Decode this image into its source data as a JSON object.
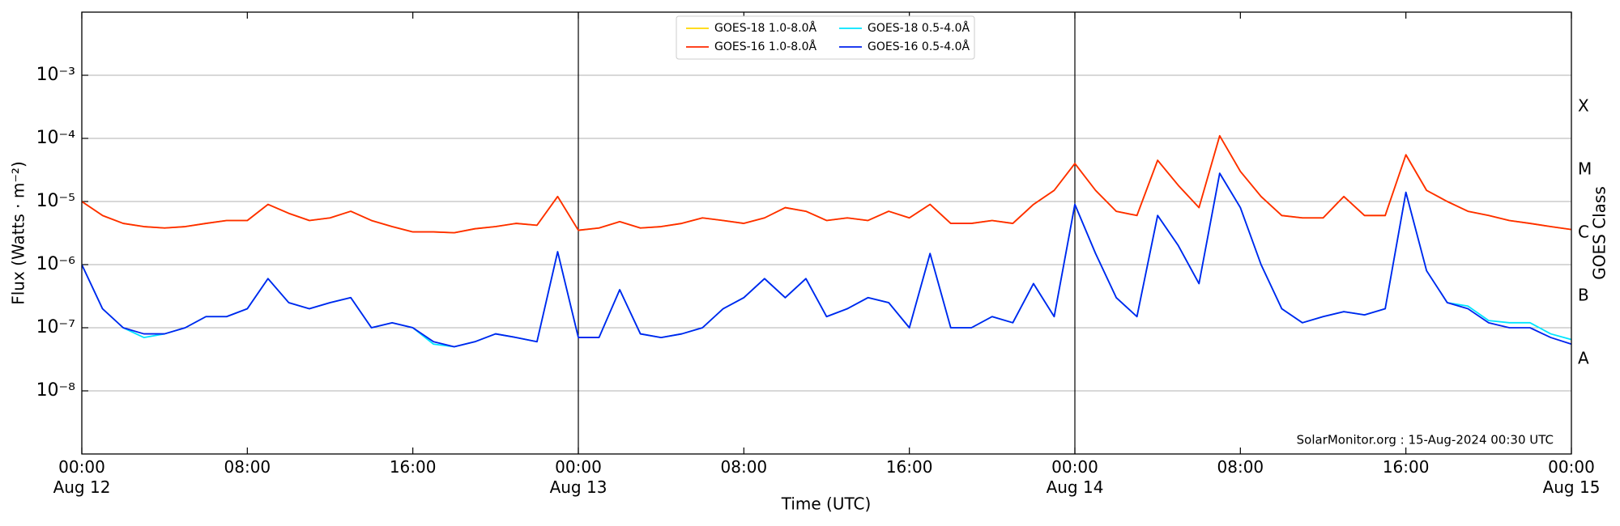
{
  "chart_data": {
    "type": "line",
    "ylabel": "Flux (Watts · m⁻²)",
    "xlabel": "Time (UTC)",
    "y2label": "GOES Class",
    "annotation": "SolarMonitor.org : 15-Aug-2024 00:30 UTC",
    "log_y": true,
    "grid": "y",
    "legend": "upper center",
    "ylim": [
      1e-09,
      0.01
    ],
    "yticks": [
      {
        "value": 1e-08,
        "label": "10⁻⁸"
      },
      {
        "value": 1e-07,
        "label": "10⁻⁷"
      },
      {
        "value": 1e-06,
        "label": "10⁻⁶"
      },
      {
        "value": 1e-05,
        "label": "10⁻⁵"
      },
      {
        "value": 0.0001,
        "label": "10⁻⁴"
      },
      {
        "value": 0.001,
        "label": "10⁻³"
      }
    ],
    "y2lim": [
      1e-09,
      0.01
    ],
    "y2ticks": [
      {
        "value": 3.16e-08,
        "label": "A"
      },
      {
        "value": 3.16e-07,
        "label": "B"
      },
      {
        "value": 3.16e-06,
        "label": "C"
      },
      {
        "value": 3.16e-05,
        "label": "M"
      },
      {
        "value": 0.000316,
        "label": "X"
      }
    ],
    "xlim": [
      "Aug 12 00:00",
      "Aug 15 00:00"
    ],
    "xticks": [
      {
        "value": "Aug 12 00:00",
        "label": "00:00\nAug 12"
      },
      {
        "value": "Aug 12 08:00",
        "label": "08:00"
      },
      {
        "value": "Aug 12 16:00",
        "label": "16:00"
      },
      {
        "value": "Aug 13 00:00",
        "label": "00:00\nAug 13"
      },
      {
        "value": "Aug 13 08:00",
        "label": "08:00"
      },
      {
        "value": "Aug 13 16:00",
        "label": "16:00"
      },
      {
        "value": "Aug 14 00:00",
        "label": "00:00\nAug 14"
      },
      {
        "value": "Aug 14 08:00",
        "label": "08:00"
      },
      {
        "value": "Aug 14 16:00",
        "label": "16:00"
      },
      {
        "value": "Aug 15 00:00",
        "label": "00:00\nAug 15"
      }
    ],
    "vlines": [
      "Aug 13 00:00",
      "Aug 14 00:00"
    ],
    "x": [
      "Aug 12 00:00",
      "Aug 12 01:00",
      "Aug 12 02:00",
      "Aug 12 03:00",
      "Aug 12 04:00",
      "Aug 12 05:00",
      "Aug 12 06:00",
      "Aug 12 07:00",
      "Aug 12 08:00",
      "Aug 12 09:00",
      "Aug 12 10:00",
      "Aug 12 11:00",
      "Aug 12 12:00",
      "Aug 12 13:00",
      "Aug 12 14:00",
      "Aug 12 15:00",
      "Aug 12 16:00",
      "Aug 12 17:00",
      "Aug 12 18:00",
      "Aug 12 19:00",
      "Aug 12 20:00",
      "Aug 12 21:00",
      "Aug 12 22:00",
      "Aug 12 23:00",
      "Aug 13 00:00",
      "Aug 13 01:00",
      "Aug 13 02:00",
      "Aug 13 03:00",
      "Aug 13 04:00",
      "Aug 13 05:00",
      "Aug 13 06:00",
      "Aug 13 07:00",
      "Aug 13 08:00",
      "Aug 13 09:00",
      "Aug 13 10:00",
      "Aug 13 11:00",
      "Aug 13 12:00",
      "Aug 13 13:00",
      "Aug 13 14:00",
      "Aug 13 15:00",
      "Aug 13 16:00",
      "Aug 13 17:00",
      "Aug 13 18:00",
      "Aug 13 19:00",
      "Aug 13 20:00",
      "Aug 13 21:00",
      "Aug 13 22:00",
      "Aug 13 23:00",
      "Aug 14 00:00",
      "Aug 14 01:00",
      "Aug 14 02:00",
      "Aug 14 03:00",
      "Aug 14 04:00",
      "Aug 14 05:00",
      "Aug 14 06:00",
      "Aug 14 07:00",
      "Aug 14 08:00",
      "Aug 14 09:00",
      "Aug 14 10:00",
      "Aug 14 11:00",
      "Aug 14 12:00",
      "Aug 14 13:00",
      "Aug 14 14:00",
      "Aug 14 15:00",
      "Aug 14 16:00",
      "Aug 14 17:00",
      "Aug 14 18:00",
      "Aug 14 19:00",
      "Aug 14 20:00",
      "Aug 14 21:00",
      "Aug 14 22:00",
      "Aug 14 23:00",
      "Aug 15 00:00"
    ],
    "series": [
      {
        "name": "GOES-18 1.0-8.0Å",
        "color": "#ffd700",
        "values": [
          1e-05,
          6e-06,
          4.5e-06,
          4e-06,
          3.8e-06,
          4e-06,
          4.5e-06,
          5e-06,
          5e-06,
          9e-06,
          6.5e-06,
          5e-06,
          5.5e-06,
          7e-06,
          5e-06,
          4e-06,
          3.3e-06,
          3.3e-06,
          3.2e-06,
          3.7e-06,
          4e-06,
          4.5e-06,
          4.2e-06,
          1.2e-05,
          3.5e-06,
          3.8e-06,
          4.8e-06,
          3.8e-06,
          4e-06,
          4.5e-06,
          5.5e-06,
          5e-06,
          4.5e-06,
          5.5e-06,
          8e-06,
          7e-06,
          5e-06,
          5.5e-06,
          5e-06,
          7e-06,
          5.5e-06,
          9e-06,
          4.5e-06,
          4.5e-06,
          5e-06,
          4.5e-06,
          9e-06,
          1.5e-05,
          4e-05,
          1.5e-05,
          7e-06,
          6e-06,
          4.5e-05,
          1.8e-05,
          8e-06,
          0.00011,
          3e-05,
          1.2e-05,
          6e-06,
          5.5e-06,
          5.5e-06,
          1.2e-05,
          6e-06,
          6e-06,
          5.5e-05,
          1.5e-05,
          1e-05,
          7e-06,
          6e-06,
          5e-06,
          4.5e-06,
          4e-06,
          3.6e-06
        ]
      },
      {
        "name": "GOES-16 1.0-8.0Å",
        "color": "#ff2a00",
        "values": [
          1e-05,
          6e-06,
          4.5e-06,
          4e-06,
          3.8e-06,
          4e-06,
          4.5e-06,
          5e-06,
          5e-06,
          9e-06,
          6.5e-06,
          5e-06,
          5.5e-06,
          7e-06,
          5e-06,
          4e-06,
          3.3e-06,
          3.3e-06,
          3.2e-06,
          3.7e-06,
          4e-06,
          4.5e-06,
          4.2e-06,
          1.2e-05,
          3.5e-06,
          3.8e-06,
          4.8e-06,
          3.8e-06,
          4e-06,
          4.5e-06,
          5.5e-06,
          5e-06,
          4.5e-06,
          5.5e-06,
          8e-06,
          7e-06,
          5e-06,
          5.5e-06,
          5e-06,
          7e-06,
          5.5e-06,
          9e-06,
          4.5e-06,
          4.5e-06,
          5e-06,
          4.5e-06,
          9e-06,
          1.5e-05,
          4e-05,
          1.5e-05,
          7e-06,
          6e-06,
          4.5e-05,
          1.8e-05,
          8e-06,
          0.00011,
          3e-05,
          1.2e-05,
          6e-06,
          5.5e-06,
          5.5e-06,
          1.2e-05,
          6e-06,
          6e-06,
          5.5e-05,
          1.5e-05,
          1e-05,
          7e-06,
          6e-06,
          5e-06,
          4.5e-06,
          4e-06,
          3.6e-06
        ]
      },
      {
        "name": "GOES-18 0.5-4.0Å",
        "color": "#00e5ff",
        "values": [
          1e-06,
          2e-07,
          1e-07,
          7e-08,
          8e-08,
          1e-07,
          1.5e-07,
          1.5e-07,
          2e-07,
          6e-07,
          2.5e-07,
          2e-07,
          2.5e-07,
          3e-07,
          1e-07,
          1.2e-07,
          1e-07,
          5.5e-08,
          5e-08,
          6e-08,
          8e-08,
          7e-08,
          6e-08,
          1.6e-06,
          7e-08,
          7e-08,
          4e-07,
          8e-08,
          7e-08,
          8e-08,
          1e-07,
          2e-07,
          3e-07,
          6e-07,
          3e-07,
          6e-07,
          1.5e-07,
          2e-07,
          3e-07,
          2.5e-07,
          1e-07,
          1.5e-06,
          1e-07,
          1e-07,
          1.5e-07,
          1.2e-07,
          5e-07,
          1.5e-07,
          9e-06,
          1.5e-06,
          3e-07,
          1.5e-07,
          6e-06,
          2e-06,
          5e-07,
          2.8e-05,
          8e-06,
          1e-06,
          2e-07,
          1.2e-07,
          1.5e-07,
          1.8e-07,
          1.6e-07,
          2e-07,
          1.4e-05,
          8e-07,
          2.5e-07,
          2.2e-07,
          1.3e-07,
          1.2e-07,
          1.2e-07,
          8e-08,
          6.5e-08
        ]
      },
      {
        "name": "GOES-16 0.5-4.0Å",
        "color": "#0022ee",
        "values": [
          1e-06,
          2e-07,
          1e-07,
          8e-08,
          8e-08,
          1e-07,
          1.5e-07,
          1.5e-07,
          2e-07,
          6e-07,
          2.5e-07,
          2e-07,
          2.5e-07,
          3e-07,
          1e-07,
          1.2e-07,
          1e-07,
          6e-08,
          5e-08,
          6e-08,
          8e-08,
          7e-08,
          6e-08,
          1.6e-06,
          7e-08,
          7e-08,
          4e-07,
          8e-08,
          7e-08,
          8e-08,
          1e-07,
          2e-07,
          3e-07,
          6e-07,
          3e-07,
          6e-07,
          1.5e-07,
          2e-07,
          3e-07,
          2.5e-07,
          1e-07,
          1.5e-06,
          1e-07,
          1e-07,
          1.5e-07,
          1.2e-07,
          5e-07,
          1.5e-07,
          9e-06,
          1.5e-06,
          3e-07,
          1.5e-07,
          6e-06,
          2e-06,
          5e-07,
          2.8e-05,
          8e-06,
          1e-06,
          2e-07,
          1.2e-07,
          1.5e-07,
          1.8e-07,
          1.6e-07,
          2e-07,
          1.4e-05,
          8e-07,
          2.5e-07,
          2e-07,
          1.2e-07,
          1e-07,
          1e-07,
          7e-08,
          5.5e-08
        ]
      }
    ]
  }
}
